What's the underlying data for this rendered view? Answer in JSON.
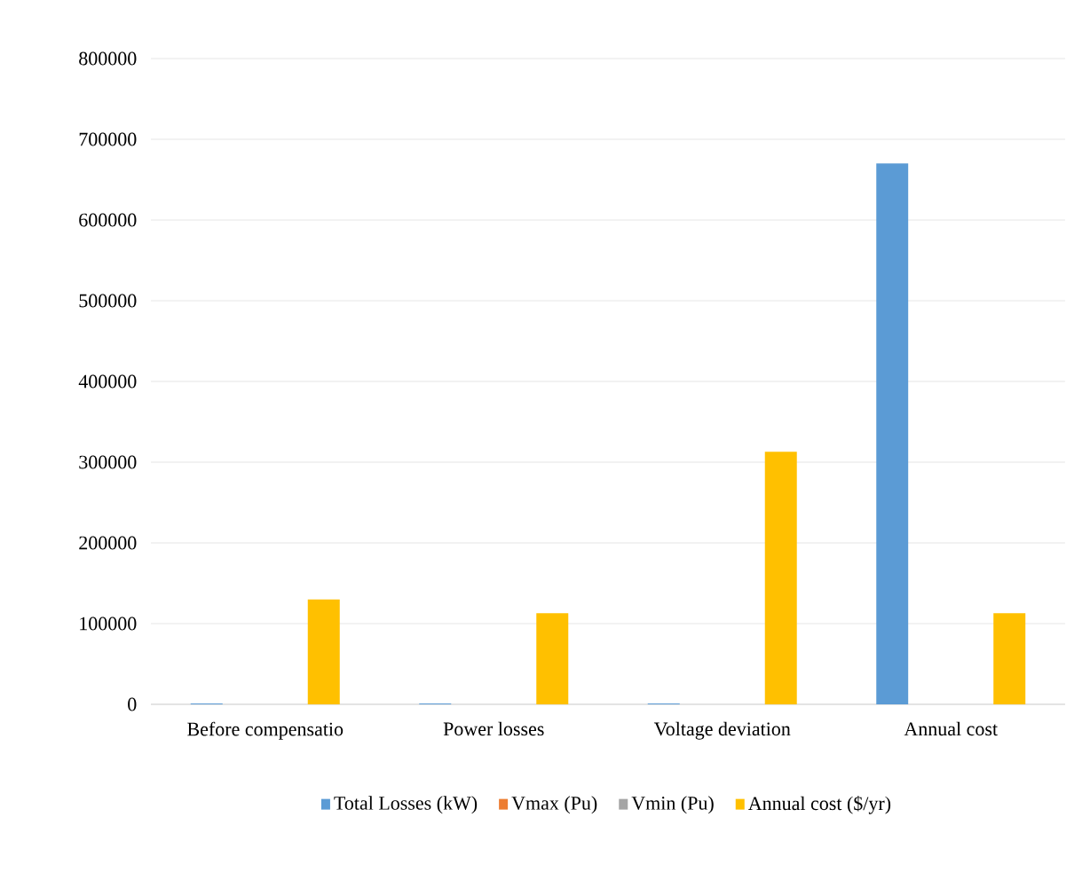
{
  "chart_data": {
    "type": "bar",
    "categories": [
      "Before compensatio",
      "Power losses",
      "Voltage deviation",
      "Annual cost"
    ],
    "series": [
      {
        "name": "Total Losses (kW)",
        "color": "#5b9bd5",
        "values": [
          1000,
          1000,
          1000,
          670000
        ]
      },
      {
        "name": "Vmax (Pu)",
        "color": "#ed7d31",
        "values": [
          1,
          1,
          1,
          1
        ]
      },
      {
        "name": "Vmin (Pu)",
        "color": "#a5a5a5",
        "values": [
          1,
          1,
          1,
          1
        ]
      },
      {
        "name": "Annual cost ($/yr)",
        "color": "#ffc000",
        "values": [
          130000,
          113000,
          313000,
          113000
        ]
      }
    ],
    "ylim": [
      0,
      800000
    ],
    "yticks": [
      0,
      100000,
      200000,
      300000,
      400000,
      500000,
      600000,
      700000,
      800000
    ],
    "grid": "y",
    "legend": "bottom"
  }
}
